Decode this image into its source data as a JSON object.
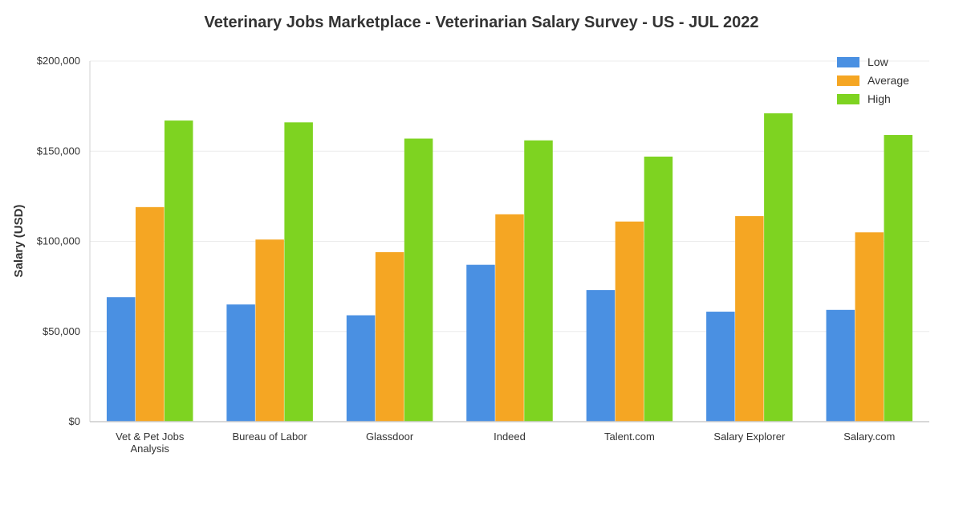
{
  "chart_data": {
    "type": "bar",
    "title": "Veterinary Jobs Marketplace - Veterinarian Salary Survey - US - JUL 2022",
    "xlabel": "",
    "ylabel": "Salary (USD)",
    "ylim": [
      0,
      200000
    ],
    "yticks": [
      0,
      50000,
      100000,
      150000,
      200000
    ],
    "ytick_labels": [
      "$0",
      "$50,000",
      "$100,000",
      "$150,000",
      "$200,000"
    ],
    "categories": [
      [
        "Vet & Pet Jobs",
        "Analysis"
      ],
      [
        "Bureau of Labor"
      ],
      [
        "Glassdoor"
      ],
      [
        "Indeed"
      ],
      [
        "Talent.com"
      ],
      [
        "Salary Explorer"
      ],
      [
        "Salary.com"
      ]
    ],
    "series": [
      {
        "name": "Low",
        "color": "#4a90e2",
        "values": [
          69000,
          65000,
          59000,
          87000,
          73000,
          61000,
          62000
        ]
      },
      {
        "name": "Average",
        "color": "#f5a623",
        "values": [
          119000,
          101000,
          94000,
          115000,
          111000,
          114000,
          105000
        ]
      },
      {
        "name": "High",
        "color": "#7ed321",
        "values": [
          167000,
          166000,
          157000,
          156000,
          147000,
          171000,
          159000
        ]
      }
    ],
    "grid": true,
    "legend_position": "top-right"
  }
}
